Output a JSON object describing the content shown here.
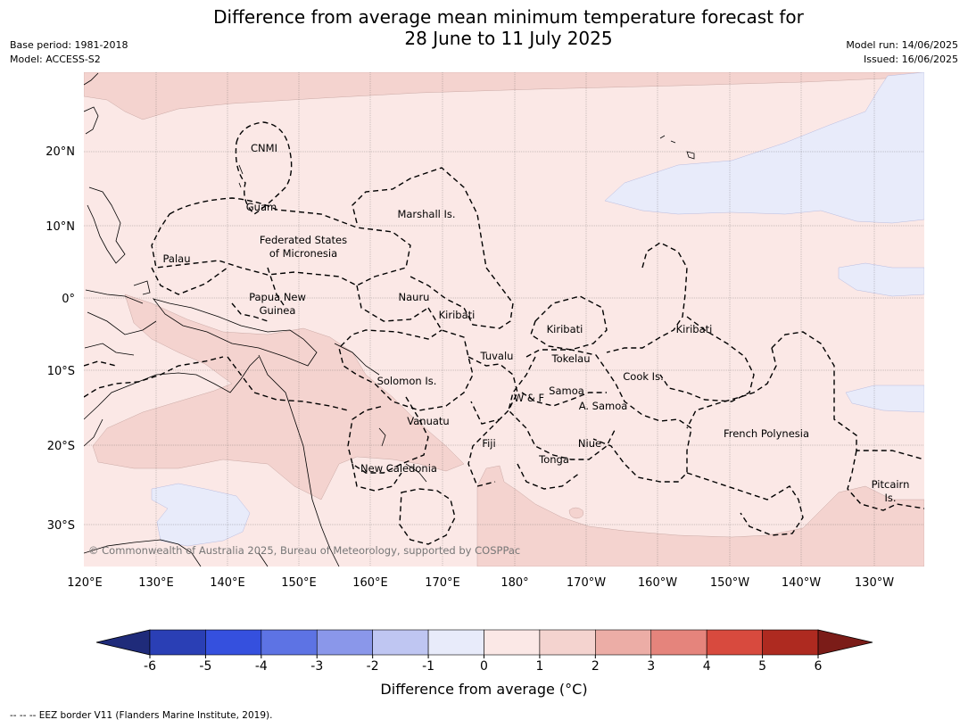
{
  "title": {
    "line1": "Difference from average mean minimum temperature forecast for",
    "line2": "28 June to 11 July 2025"
  },
  "meta_left": {
    "base_period": "Base period: 1981-2018",
    "model": "Model: ACCESS-S2"
  },
  "meta_right": {
    "model_run": "Model run: 14/06/2025",
    "issued": "Issued: 16/06/2025"
  },
  "map": {
    "lon_ticks": [
      "120°E",
      "130°E",
      "140°E",
      "150°E",
      "160°E",
      "170°E",
      "180°",
      "170°W",
      "160°W",
      "150°W",
      "140°W",
      "130°W"
    ],
    "lat_ticks": [
      "20°N",
      "10°N",
      "0°",
      "10°S",
      "20°S",
      "30°S"
    ],
    "copyright": "© Commonwealth of Australia 2025, Bureau of Meteorology, supported by COSPPac",
    "region_labels": [
      {
        "text": "CNMI"
      },
      {
        "text": "Guam"
      },
      {
        "text": "Marshall Is."
      },
      {
        "text": "Federated States"
      },
      {
        "text": "of Micronesia"
      },
      {
        "text": "Palau"
      },
      {
        "text": "Papua New"
      },
      {
        "text": "Guinea"
      },
      {
        "text": "Nauru"
      },
      {
        "text": "Kiribati"
      },
      {
        "text": "Kiribati"
      },
      {
        "text": "Kiribati"
      },
      {
        "text": "Tuvalu"
      },
      {
        "text": "Tokelau"
      },
      {
        "text": "Cook Is."
      },
      {
        "text": "Solomon Is."
      },
      {
        "text": "Samoa"
      },
      {
        "text": "W & F"
      },
      {
        "text": "A. Samoa"
      },
      {
        "text": "Vanuatu"
      },
      {
        "text": "Fiji"
      },
      {
        "text": "Niue"
      },
      {
        "text": "Tonga"
      },
      {
        "text": "French Polynesia"
      },
      {
        "text": "New Caledonia"
      },
      {
        "text": "Pitcairn"
      },
      {
        "text": "Is."
      }
    ]
  },
  "colorbar": {
    "tick_labels": [
      "-6",
      "-5",
      "-4",
      "-3",
      "-2",
      "-1",
      "0",
      "1",
      "2",
      "3",
      "4",
      "5",
      "6"
    ],
    "colors": [
      "#1f2b7a",
      "#2a3fb5",
      "#3550de",
      "#5d73e4",
      "#8a97ea",
      "#bfc6f2",
      "#e8ebfa",
      "#fbe8e6",
      "#f4d3cf",
      "#ecada6",
      "#e5847c",
      "#d84a3e",
      "#ae2a20",
      "#7b1c18"
    ],
    "label": "Difference from average (°C)"
  },
  "footnote": "--  --  -- EEZ border V11 (Flanders Marine Institute, 2019)."
}
